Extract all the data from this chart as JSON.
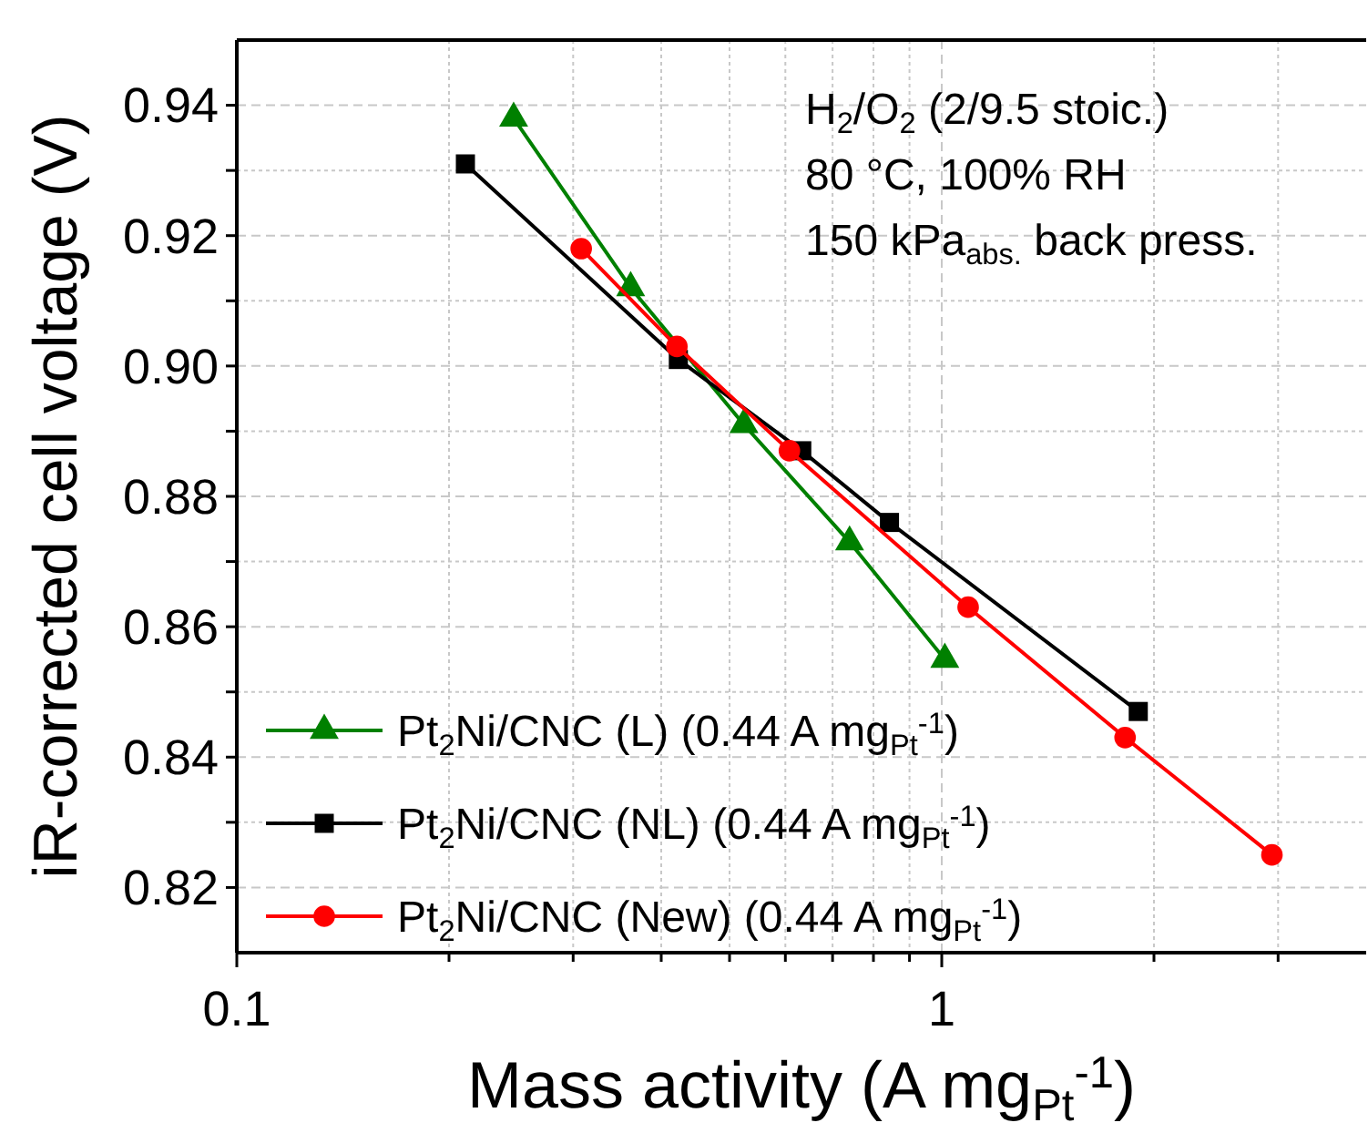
{
  "chart_data": {
    "type": "line",
    "xlabel": "Mass activity (A mg$_{Pt}$$^{-1}$)",
    "ylabel": "iR-corrected cell voltage (V)",
    "log": "x",
    "xlim": [
      0.1,
      4
    ],
    "xticks": [
      0.1,
      {
        "value": 0.2,
        "label": null
      },
      {
        "value": 0.3,
        "label": null
      },
      {
        "value": 0.4,
        "label": null
      },
      {
        "value": 0.5,
        "label": null
      },
      {
        "value": 0.6,
        "label": null
      },
      {
        "value": 0.7,
        "label": null
      },
      {
        "value": 0.8,
        "label": null
      },
      {
        "value": 0.9,
        "label": null
      },
      1,
      {
        "value": 2,
        "label": null
      },
      {
        "value": 3,
        "label": null
      }
    ],
    "ylim": [
      0.81,
      0.95
    ],
    "yticks": [
      0.82,
      {
        "value": 0.83,
        "label": null
      },
      0.84,
      {
        "value": 0.85,
        "label": null
      },
      0.86,
      {
        "value": 0.87,
        "label": null
      },
      0.88,
      {
        "value": 0.89,
        "label": null
      },
      "0.90",
      {
        "value": 0.91,
        "label": null
      },
      0.92,
      {
        "value": 0.93,
        "label": null
      },
      0.94
    ],
    "grid": true,
    "legend": "bottom left",
    "series": [
      {
        "name": "Pt$_{2}$Ni/CNC (L) (0.44 A mg$_{Pt}$$^{-1}$)",
        "color": "#008000",
        "marker": "triangle",
        "x": [
          0.247,
          0.362,
          0.524,
          0.74,
          1.01
        ],
        "values": [
          0.938,
          0.912,
          0.891,
          0.873,
          0.855
        ]
      },
      {
        "name": "Pt$_{2}$Ni/CNC (NL) (0.44 A mg$_{Pt}$$^{-1}$)",
        "color": "#000000",
        "marker": "square",
        "x": [
          0.211,
          0.423,
          0.633,
          0.843,
          1.9
        ],
        "values": [
          0.931,
          0.901,
          0.887,
          0.876,
          0.847
        ]
      },
      {
        "name": "Pt$_{2}$Ni/CNC (New) (0.44 A mg$_{Pt}$$^{-1}$)",
        "color": "#ff0000",
        "marker": "circle",
        "x": [
          0.308,
          0.421,
          0.608,
          1.09,
          1.82,
          2.94
        ],
        "values": [
          0.918,
          0.903,
          0.887,
          0.863,
          0.843,
          0.825
        ]
      }
    ],
    "annotations": [
      "H$_{2}$/O$_{2}$ (2/9.5 stoic.)",
      "80 °C, 100% RH",
      "150 kPa$_{abs.}$ back press."
    ]
  }
}
